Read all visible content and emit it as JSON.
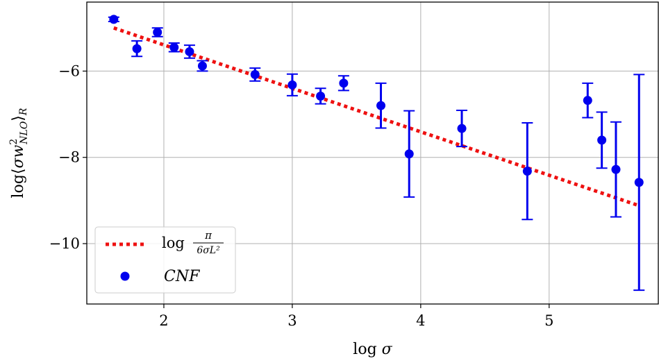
{
  "chart_data": {
    "type": "scatter",
    "xlabel": "log σ",
    "ylabel": "log⟨σw²NLO⟩R",
    "xlim": [
      1.4,
      5.85
    ],
    "ylim": [
      -11.4,
      -4.4
    ],
    "xticks": [
      2,
      3,
      4,
      5
    ],
    "yticks": [
      -10,
      -8,
      -6
    ],
    "xtick_labels": [
      "2",
      "3",
      "4",
      "5"
    ],
    "ytick_labels": [
      "−10",
      "−8",
      "−6"
    ],
    "grid": true,
    "legend_placement": "bottom-left",
    "colors": {
      "points": "#0000ee",
      "fit": "#ee1111",
      "grid": "#b0b0b0"
    },
    "series": [
      {
        "name": "CNF",
        "kind": "errorbar",
        "x": [
          1.61,
          1.79,
          1.95,
          2.08,
          2.2,
          2.3,
          2.71,
          3.0,
          3.22,
          3.4,
          3.69,
          3.91,
          4.32,
          4.83,
          5.3,
          5.41,
          5.52,
          5.7
        ],
        "y": [
          -4.8,
          -5.48,
          -5.1,
          -5.45,
          -5.55,
          -5.88,
          -6.08,
          -6.32,
          -6.58,
          -6.28,
          -6.8,
          -7.92,
          -7.33,
          -8.32,
          -6.68,
          -7.6,
          -8.28,
          -8.58
        ],
        "yerr": [
          0.05,
          0.18,
          0.1,
          0.1,
          0.15,
          0.12,
          0.15,
          0.25,
          0.18,
          0.17,
          0.52,
          1.0,
          0.42,
          1.12,
          0.4,
          0.65,
          1.1,
          2.5
        ]
      },
      {
        "name": "log π/(6σL²)",
        "kind": "fit-line",
        "x": [
          1.61,
          5.7
        ],
        "y": [
          -5.0,
          -9.12
        ]
      }
    ],
    "legend": {
      "fit_label": {
        "prefix": "log",
        "numerator": "π",
        "denominator": "6σL²"
      },
      "points_label": "CNF"
    }
  }
}
